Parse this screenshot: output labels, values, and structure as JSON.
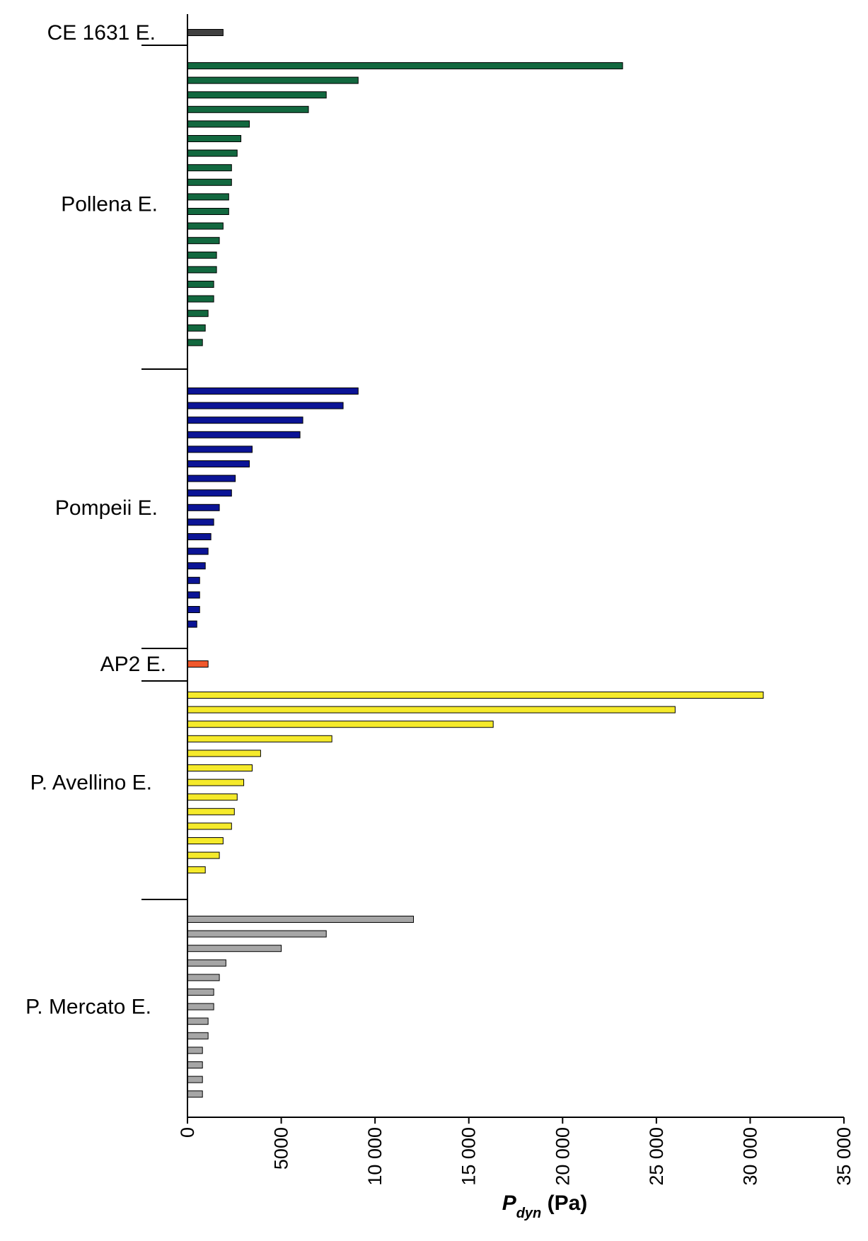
{
  "chart_data": {
    "type": "bar",
    "orientation": "horizontal",
    "xlabel": {
      "symbol": "P",
      "subscript": "dyn",
      "unit": " (Pa)"
    },
    "xlim": [
      0,
      35000
    ],
    "x_ticks": [
      0,
      5000,
      10000,
      15000,
      20000,
      25000,
      30000,
      35000
    ],
    "x_tick_labels": [
      "0",
      "5000",
      "10 000",
      "15 000",
      "20 000",
      "25 000",
      "30 000",
      "35 000"
    ],
    "legend": "none",
    "grid": false,
    "groups": [
      {
        "name": "CE 1631 E.",
        "color": "#404040",
        "values": [
          1900
        ]
      },
      {
        "name": "Pollena E.",
        "color": "#12683f",
        "values": [
          23200,
          9100,
          7400,
          6450,
          3300,
          2850,
          2650,
          2350,
          2350,
          2200,
          2200,
          1900,
          1700,
          1550,
          1550,
          1400,
          1400,
          1100,
          950,
          800
        ]
      },
      {
        "name": "Pompeii E.",
        "color": "#0b1496",
        "values": [
          9100,
          8300,
          6150,
          6000,
          3450,
          3300,
          2550,
          2350,
          1700,
          1400,
          1250,
          1100,
          950,
          650,
          650,
          650,
          500
        ]
      },
      {
        "name": "AP2 E.",
        "color": "#f0582c",
        "values": [
          1100
        ]
      },
      {
        "name": "P. Avellino E.",
        "color": "#f5ea2b",
        "values": [
          30700,
          26000,
          16300,
          7700,
          3900,
          3450,
          3000,
          2650,
          2500,
          2350,
          1900,
          1700,
          950
        ]
      },
      {
        "name": "P. Mercato E.",
        "color": "#a6a6a6",
        "values": [
          12050,
          7400,
          5000,
          2050,
          1700,
          1400,
          1400,
          1100,
          1100,
          800,
          800,
          800,
          800
        ]
      }
    ]
  }
}
